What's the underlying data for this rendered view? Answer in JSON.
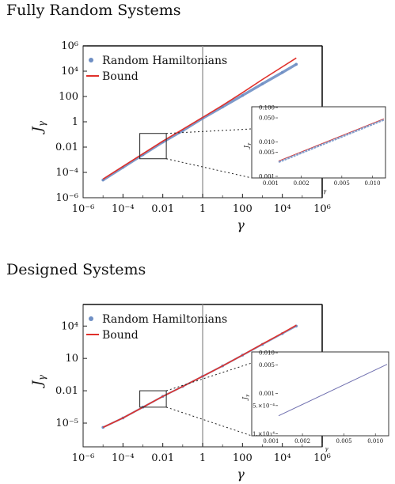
{
  "chart_data": [
    {
      "type": "line",
      "title": "Fully Random Systems",
      "xlabel": "γ",
      "ylabel": "J_γ",
      "xscale": "log",
      "yscale": "log",
      "xlim": [
        1e-06,
        1000000.0
      ],
      "ylim": [
        1e-06,
        1000000.0
      ],
      "x_ticks": [
        "10⁻⁶",
        "10⁻⁴",
        "0.01",
        "1",
        "100",
        "10⁴",
        "10⁶"
      ],
      "y_ticks": [
        "10⁻⁶",
        "10⁻⁴",
        "0.01",
        "1",
        "100",
        "10⁴",
        "10⁶"
      ],
      "vertical_line_at": 1,
      "legend": {
        "position": "top-left",
        "entries": [
          "Random Hamiltonians",
          "Bound"
        ]
      },
      "series": [
        {
          "name": "Random Hamiltonians",
          "color": "#6f8fc4",
          "style": "points",
          "x": [
            1e-05,
            0.0001,
            0.001,
            0.01,
            0.1,
            1,
            10,
            100,
            1000,
            10000,
            50000
          ],
          "y": [
            2.5e-05,
            0.00025,
            0.0025,
            0.025,
            0.2,
            1.9,
            15,
            120,
            1000,
            8000,
            35000
          ]
        },
        {
          "name": "Bound",
          "color": "#e0302a",
          "style": "line",
          "x": [
            1e-05,
            0.0001,
            0.001,
            0.01,
            0.1,
            1,
            10,
            100,
            1000,
            10000,
            50000
          ],
          "y": [
            3e-05,
            0.0003,
            0.003,
            0.03,
            0.25,
            2.2,
            20,
            200,
            2200,
            22000,
            110000
          ]
        }
      ],
      "zoom_box": {
        "xlim": [
          0.0007,
          0.015
        ],
        "ylim": [
          0.0012,
          0.12
        ]
      },
      "inset": {
        "xlabel": "γ",
        "ylabel": "J_γ",
        "x_ticks": [
          "0.001",
          "0.002",
          "0.005",
          "0.010"
        ],
        "y_ticks": [
          "0.001",
          "0.005",
          "0.010",
          "0.050",
          "0.100"
        ]
      }
    },
    {
      "type": "line",
      "title": "Designed Systems",
      "xlabel": "γ",
      "ylabel": "J_γ",
      "xscale": "log",
      "yscale": "log",
      "xlim": [
        1e-06,
        1000000.0
      ],
      "ylim": [
        1e-06,
        1000000.0
      ],
      "x_ticks": [
        "10⁻⁶",
        "10⁻⁴",
        "0.01",
        "1",
        "100",
        "10⁴",
        "10⁶"
      ],
      "y_ticks": [
        "10⁻⁵",
        "0.01",
        "10",
        "10⁴"
      ],
      "vertical_line_at": 1,
      "legend": {
        "position": "top-left",
        "entries": [
          "Random Hamiltonians",
          "Bound"
        ]
      },
      "series": [
        {
          "name": "Random Hamiltonians",
          "color": "#6f8fc4",
          "style": "points",
          "x": [
            1e-05,
            0.0001,
            0.001,
            0.01,
            0.1,
            1,
            10,
            100,
            1000,
            10000,
            50000
          ],
          "y": [
            4e-06,
            3e-05,
            0.0003,
            0.003,
            0.025,
            0.22,
            2,
            20,
            200,
            2000,
            10000
          ]
        },
        {
          "name": "Bound",
          "color": "#e0302a",
          "style": "line",
          "x": [
            1e-05,
            0.0001,
            0.001,
            0.01,
            0.1,
            1,
            10,
            100,
            1000,
            10000,
            50000
          ],
          "y": [
            4e-06,
            3e-05,
            0.0003,
            0.003,
            0.025,
            0.22,
            2,
            20,
            220,
            2200,
            12000
          ]
        }
      ],
      "zoom_box": {
        "xlim": [
          0.0007,
          0.015
        ],
        "ylim": [
          0.0003,
          0.01
        ]
      },
      "inset": {
        "xlabel": "γ",
        "ylabel": "J_γ",
        "x_ticks": [
          "0.001",
          "0.002",
          "0.005",
          "0.010"
        ],
        "y_ticks": [
          "1.×10⁻⁴",
          "5.×10⁻⁴",
          "0.001",
          "0.005",
          "0.010"
        ]
      }
    }
  ]
}
